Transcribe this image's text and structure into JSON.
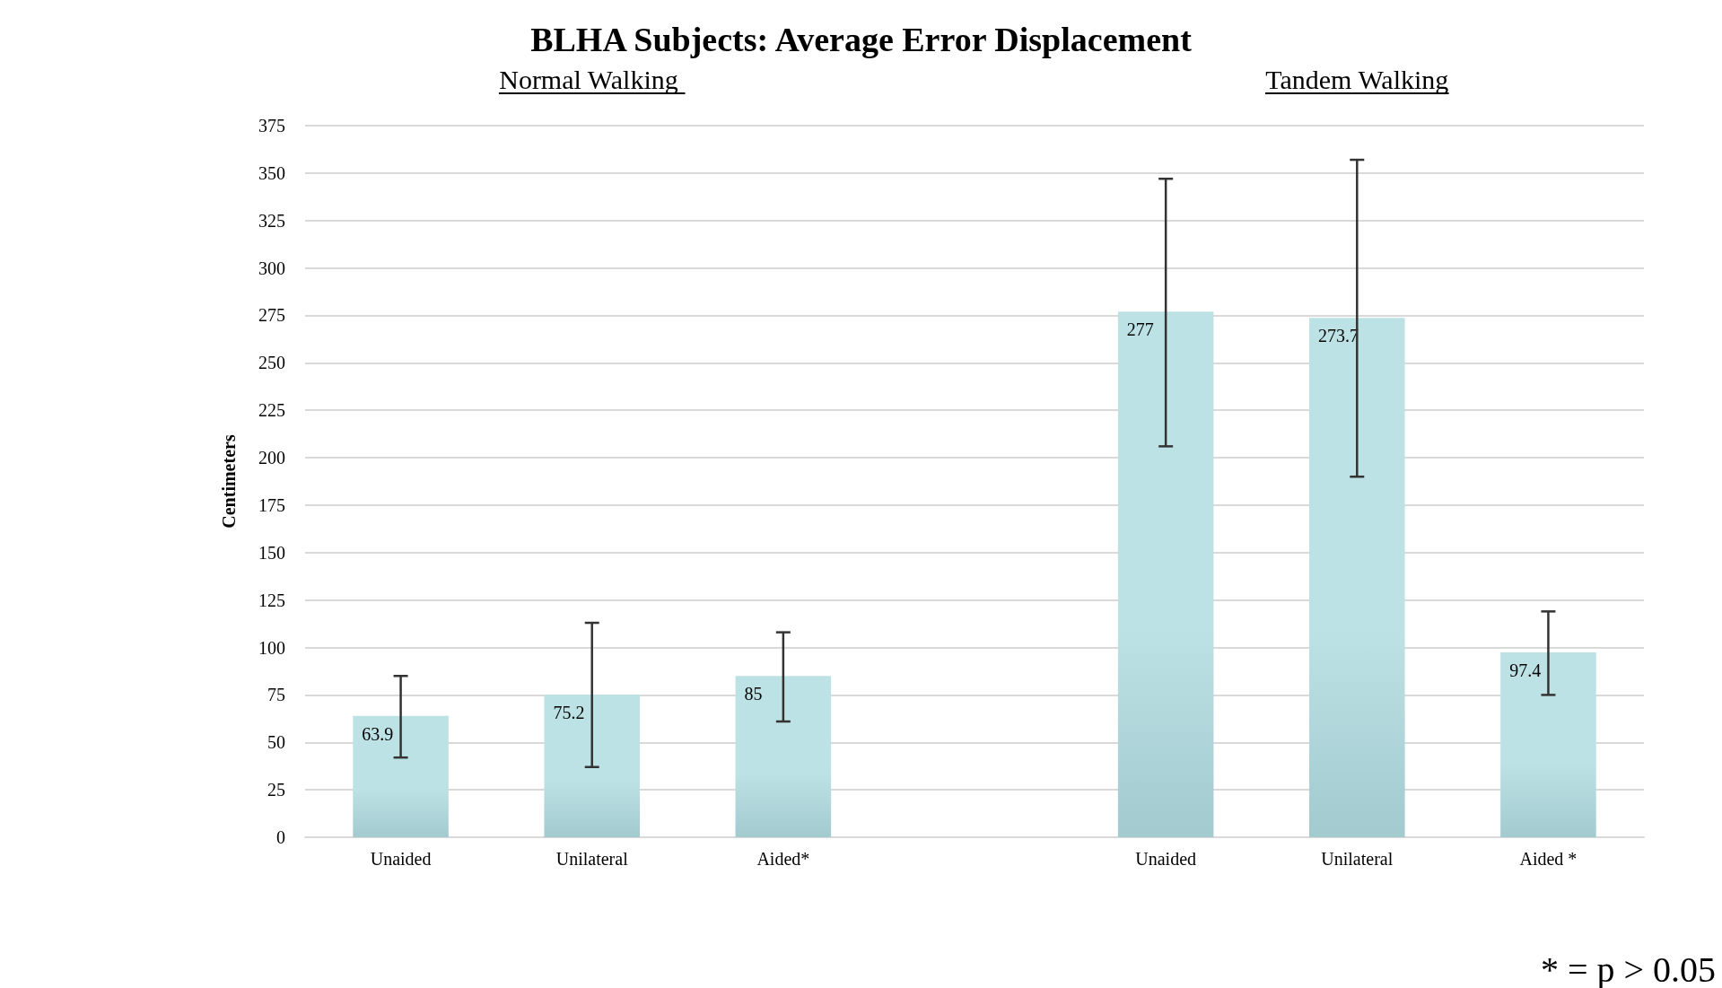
{
  "chart_data": {
    "type": "bar",
    "title": "BLHA Subjects: Average Error Displacement",
    "ylabel": "Centimeters",
    "categories": [
      "Unaided",
      "Unilateral",
      "Aided*",
      null,
      "Unaided",
      "Unilateral",
      "Aided *"
    ],
    "values": [
      63.9,
      75.2,
      85,
      null,
      277,
      273.7,
      97.4
    ],
    "errors": [
      [
        42,
        85
      ],
      [
        37,
        113
      ],
      [
        61,
        108
      ],
      null,
      [
        206,
        347
      ],
      [
        190,
        357
      ],
      [
        75,
        119
      ]
    ],
    "color": "#bde2e5",
    "data_labels": true,
    "ylim": [
      0,
      375
    ],
    "yticks": [
      0,
      25,
      50,
      75,
      100,
      125,
      150,
      175,
      200,
      225,
      250,
      275,
      300,
      325,
      350,
      375
    ],
    "grid": "y",
    "annotations": [
      "Normal Walking ",
      "Tandem Walking",
      "* = p > 0.05"
    ]
  }
}
